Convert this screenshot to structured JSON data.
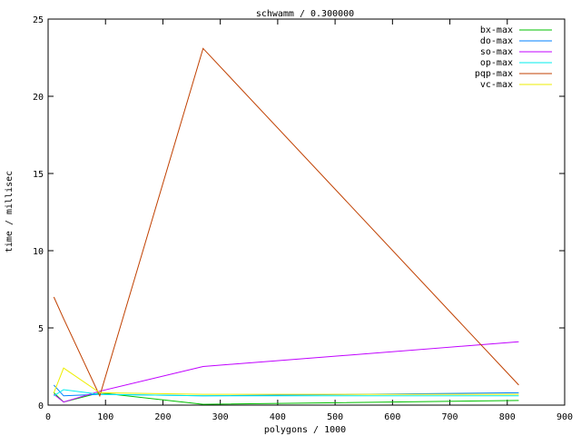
{
  "chart_data": {
    "type": "line",
    "title": "schwamm / 0.300000",
    "xlabel": "polygons / 1000",
    "ylabel": "time / millisec",
    "xlim": [
      0,
      900
    ],
    "ylim": [
      0,
      25
    ],
    "xticks": [
      0,
      100,
      200,
      300,
      400,
      500,
      600,
      700,
      800,
      900
    ],
    "yticks": [
      0,
      5,
      10,
      15,
      20,
      25
    ],
    "grid": false,
    "legend": "top-right",
    "x": [
      10,
      27,
      90,
      270,
      820
    ],
    "series": [
      {
        "name": "bx-max",
        "color": "#00c000",
        "values": [
          0.8,
          0.2,
          0.8,
          0.05,
          0.3
        ]
      },
      {
        "name": "do-max",
        "color": "#0080ff",
        "values": [
          1.3,
          0.6,
          0.7,
          0.6,
          0.8
        ]
      },
      {
        "name": "so-max",
        "color": "#c000ff",
        "values": [
          0.7,
          0.2,
          0.9,
          2.5,
          4.1
        ]
      },
      {
        "name": "op-max",
        "color": "#00eeee",
        "values": [
          0.6,
          1.0,
          0.7,
          0.6,
          0.6
        ]
      },
      {
        "name": "pqp-max",
        "color": "#c04000",
        "values": [
          7.0,
          5.6,
          0.6,
          23.1,
          1.3
        ]
      },
      {
        "name": "vc-max",
        "color": "#eeee00",
        "values": [
          0.8,
          2.4,
          0.8,
          0.7,
          0.7
        ]
      }
    ]
  }
}
